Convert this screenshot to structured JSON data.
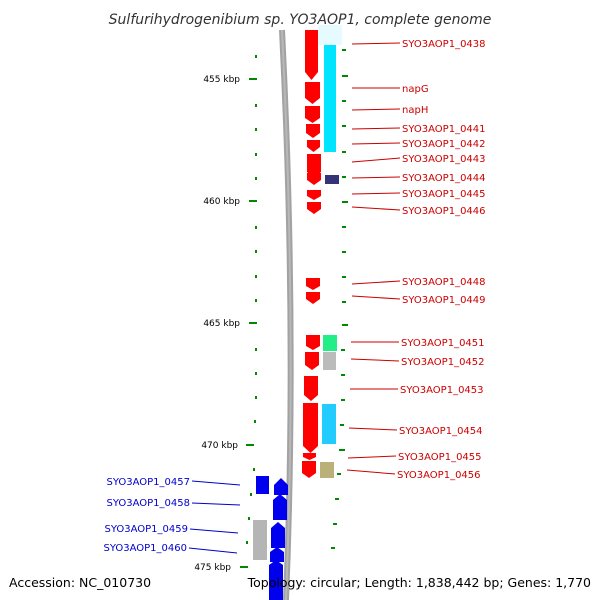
{
  "title": "Sulfurihydrogenibium sp. YO3AOP1, complete genome",
  "accession": "Accession: NC_010730",
  "summary": "Topology: circular; Length: 1,838,442 bp; Genes: 1,770",
  "colors": {
    "forward_gene": "#ff0000",
    "reverse_gene": "#0000ee",
    "label_right": "#cc0000",
    "label_left": "#0000cc",
    "tick": "#008800",
    "backbone": "#888888"
  },
  "scale_labels": [
    "455 kbp",
    "460 kbp",
    "465 kbp",
    "470 kbp",
    "475 kbp"
  ],
  "genes_right": [
    {
      "name": "SYO3AOP1_0438",
      "label": "SYO3AOP1_0438"
    },
    {
      "name": "napG",
      "label": "napG"
    },
    {
      "name": "napH",
      "label": "napH"
    },
    {
      "name": "SYO3AOP1_0441",
      "label": "SYO3AOP1_0441"
    },
    {
      "name": "SYO3AOP1_0442",
      "label": "SYO3AOP1_0442"
    },
    {
      "name": "SYO3AOP1_0443",
      "label": "SYO3AOP1_0443"
    },
    {
      "name": "SYO3AOP1_0444",
      "label": "SYO3AOP1_0444"
    },
    {
      "name": "SYO3AOP1_0445",
      "label": "SYO3AOP1_0445"
    },
    {
      "name": "SYO3AOP1_0446",
      "label": "SYO3AOP1_0446"
    },
    {
      "name": "SYO3AOP1_0448",
      "label": "SYO3AOP1_0448"
    },
    {
      "name": "SYO3AOP1_0449",
      "label": "SYO3AOP1_0449"
    },
    {
      "name": "SYO3AOP1_0451",
      "label": "SYO3AOP1_0451"
    },
    {
      "name": "SYO3AOP1_0452",
      "label": "SYO3AOP1_0452"
    },
    {
      "name": "SYO3AOP1_0453",
      "label": "SYO3AOP1_0453"
    },
    {
      "name": "SYO3AOP1_0454",
      "label": "SYO3AOP1_0454"
    },
    {
      "name": "SYO3AOP1_0455",
      "label": "SYO3AOP1_0455"
    },
    {
      "name": "SYO3AOP1_0456",
      "label": "SYO3AOP1_0456"
    }
  ],
  "genes_left": [
    {
      "name": "SYO3AOP1_0457",
      "label": "SYO3AOP1_0457"
    },
    {
      "name": "SYO3AOP1_0458",
      "label": "SYO3AOP1_0458"
    },
    {
      "name": "SYO3AOP1_0459",
      "label": "SYO3AOP1_0459"
    },
    {
      "name": "SYO3AOP1_0460",
      "label": "SYO3AOP1_0460"
    }
  ]
}
